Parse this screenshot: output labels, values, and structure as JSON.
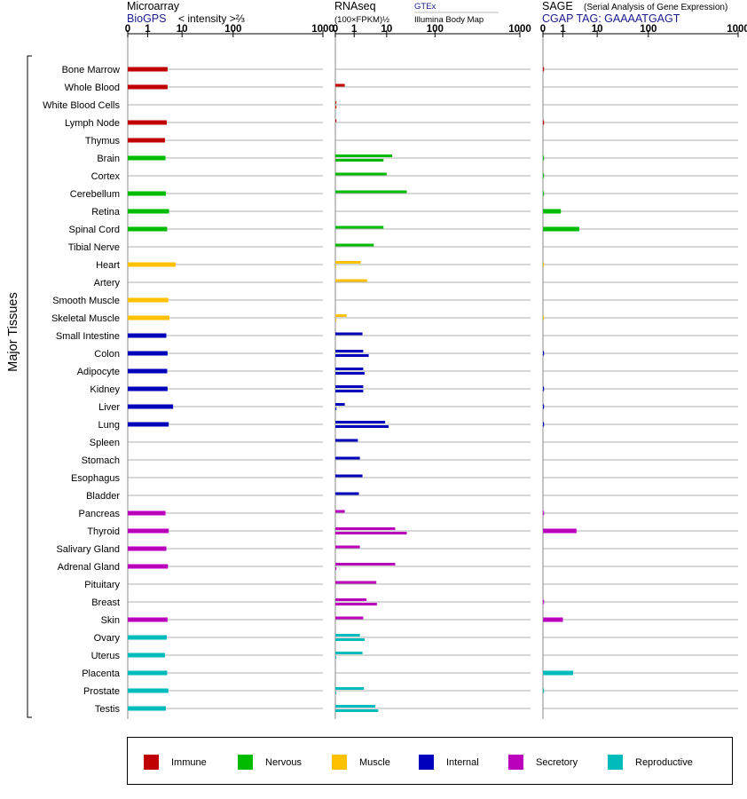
{
  "panels": [
    {
      "key": "microarray",
      "title": "Microarray",
      "subtitle": "BioGPS",
      "unit_label": "< intensity >⅔",
      "ticks": [
        "0",
        "1",
        "10",
        "100",
        "1000"
      ]
    },
    {
      "key": "rnaseq",
      "title": "RNAseq",
      "unit_label": "(100×FPKM)½",
      "source_top": "GTEx",
      "source_bottom": "Illumina Body Map",
      "ticks": [
        "0",
        "1",
        "10",
        "100",
        "1000"
      ]
    },
    {
      "key": "sage",
      "title": "SAGE",
      "title_note": "(Serial Analysis of Gene Expression)",
      "subtitle": "CGAP  TAG: GAAAATGAGT",
      "ticks": [
        "0",
        "1",
        "10",
        "100",
        "1000"
      ]
    }
  ],
  "y_axis_label": "Major Tissues",
  "colors": {
    "Immune": "#c00000",
    "Nervous": "#00bb00",
    "Muscle": "#ffc000",
    "Internal": "#0000bb",
    "Secretory": "#bb00bb",
    "Reproductive": "#00bbbb"
  },
  "legend": [
    "Immune",
    "Nervous",
    "Muscle",
    "Internal",
    "Secretory",
    "Reproductive"
  ],
  "chart_data": {
    "type": "bar",
    "orientation": "horizontal",
    "x_scale": "log",
    "xlim": [
      0,
      1000
    ],
    "grid": true,
    "legend_position": "bottom",
    "tissues": [
      {
        "name": "Bone Marrow",
        "group": "Immune",
        "microarray": 3.8,
        "rnaseq": [],
        "sage": 0.02
      },
      {
        "name": "Whole Blood",
        "group": "Immune",
        "microarray": 3.8,
        "rnaseq": [
          0.5
        ],
        "sage": 0
      },
      {
        "name": "White Blood Cells",
        "group": "Immune",
        "microarray": 0,
        "rnaseq": [
          0.02,
          0.02
        ],
        "sage": 0
      },
      {
        "name": "Lymph Node",
        "group": "Immune",
        "microarray": 3.6,
        "rnaseq": [
          0.02
        ],
        "sage": 0.02
      },
      {
        "name": "Thymus",
        "group": "Immune",
        "microarray": 3.2,
        "rnaseq": [],
        "sage": 0
      },
      {
        "name": "Brain",
        "group": "Nervous",
        "microarray": 3.3,
        "rnaseq": [
          13,
          8
        ],
        "sage": 0.02
      },
      {
        "name": "Cortex",
        "group": "Nervous",
        "microarray": 0,
        "rnaseq": [
          10
        ],
        "sage": 0.02
      },
      {
        "name": "Cerebellum",
        "group": "Nervous",
        "microarray": 3.4,
        "rnaseq": [
          26
        ],
        "sage": 0.02
      },
      {
        "name": "Retina",
        "group": "Nervous",
        "microarray": 4.2,
        "rnaseq": [],
        "sage": 0.9
      },
      {
        "name": "Spinal Cord",
        "group": "Nervous",
        "microarray": 3.7,
        "rnaseq": [
          8
        ],
        "sage": 3.0
      },
      {
        "name": "Tibial Nerve",
        "group": "Nervous",
        "microarray": 0,
        "rnaseq": [
          4
        ],
        "sage": 0
      },
      {
        "name": "Heart",
        "group": "Muscle",
        "microarray": 6.5,
        "rnaseq": [
          1.6,
          0.02
        ],
        "sage": 0.02
      },
      {
        "name": "Artery",
        "group": "Muscle",
        "microarray": 0,
        "rnaseq": [
          2.5
        ],
        "sage": 0
      },
      {
        "name": "Smooth Muscle",
        "group": "Muscle",
        "microarray": 4.0,
        "rnaseq": [],
        "sage": 0
      },
      {
        "name": "Skeletal Muscle",
        "group": "Muscle",
        "microarray": 4.3,
        "rnaseq": [
          0.6,
          0.02
        ],
        "sage": 0.02
      },
      {
        "name": "Small Intestine",
        "group": "Internal",
        "microarray": 3.5,
        "rnaseq": [
          1.8
        ],
        "sage": 0
      },
      {
        "name": "Colon",
        "group": "Internal",
        "microarray": 3.8,
        "rnaseq": [
          1.9,
          2.8
        ],
        "sage": 0.02
      },
      {
        "name": "Adipocyte",
        "group": "Internal",
        "microarray": 3.7,
        "rnaseq": [
          1.9,
          2.1
        ],
        "sage": 0
      },
      {
        "name": "Kidney",
        "group": "Internal",
        "microarray": 3.8,
        "rnaseq": [
          1.9,
          1.9
        ],
        "sage": 0.02
      },
      {
        "name": "Liver",
        "group": "Internal",
        "microarray": 5.5,
        "rnaseq": [
          0.5,
          0.02
        ],
        "sage": 0.02
      },
      {
        "name": "Lung",
        "group": "Internal",
        "microarray": 4.1,
        "rnaseq": [
          9,
          11
        ],
        "sage": 0.02
      },
      {
        "name": "Spleen",
        "group": "Internal",
        "microarray": 0,
        "rnaseq": [
          1.3
        ],
        "sage": 0
      },
      {
        "name": "Stomach",
        "group": "Internal",
        "microarray": 0,
        "rnaseq": [
          1.5
        ],
        "sage": 0
      },
      {
        "name": "Esophagus",
        "group": "Internal",
        "microarray": 0,
        "rnaseq": [
          1.8
        ],
        "sage": 0
      },
      {
        "name": "Bladder",
        "group": "Internal",
        "microarray": 0,
        "rnaseq": [
          1.4
        ],
        "sage": 0
      },
      {
        "name": "Pancreas",
        "group": "Secretory",
        "microarray": 3.3,
        "rnaseq": [
          0.5
        ],
        "sage": 0.02
      },
      {
        "name": "Thyroid",
        "group": "Secretory",
        "microarray": 4.1,
        "rnaseq": [
          15,
          26
        ],
        "sage": 2.5
      },
      {
        "name": "Salivary Gland",
        "group": "Secretory",
        "microarray": 3.5,
        "rnaseq": [
          1.5
        ],
        "sage": 0
      },
      {
        "name": "Adrenal Gland",
        "group": "Secretory",
        "microarray": 3.9,
        "rnaseq": [
          15,
          0.02
        ],
        "sage": 0
      },
      {
        "name": "Pituitary",
        "group": "Secretory",
        "microarray": 0,
        "rnaseq": [
          4.8
        ],
        "sage": 0
      },
      {
        "name": "Breast",
        "group": "Secretory",
        "microarray": 0,
        "rnaseq": [
          2.4,
          5
        ],
        "sage": 0.02
      },
      {
        "name": "Skin",
        "group": "Secretory",
        "microarray": 3.8,
        "rnaseq": [
          1.9
        ],
        "sage": 1.0
      },
      {
        "name": "Ovary",
        "group": "Reproductive",
        "microarray": 3.6,
        "rnaseq": [
          1.5,
          2.1
        ],
        "sage": 0
      },
      {
        "name": "Uterus",
        "group": "Reproductive",
        "microarray": 3.2,
        "rnaseq": [
          1.8,
          0.02
        ],
        "sage": 0
      },
      {
        "name": "Placenta",
        "group": "Reproductive",
        "microarray": 3.7,
        "rnaseq": [],
        "sage": 2.0
      },
      {
        "name": "Prostate",
        "group": "Reproductive",
        "microarray": 4.0,
        "rnaseq": [
          2.0,
          0.02
        ],
        "sage": 0.02
      },
      {
        "name": "Testis",
        "group": "Reproductive",
        "microarray": 3.4,
        "rnaseq": [
          4.5,
          5.5
        ],
        "sage": 0
      }
    ]
  }
}
